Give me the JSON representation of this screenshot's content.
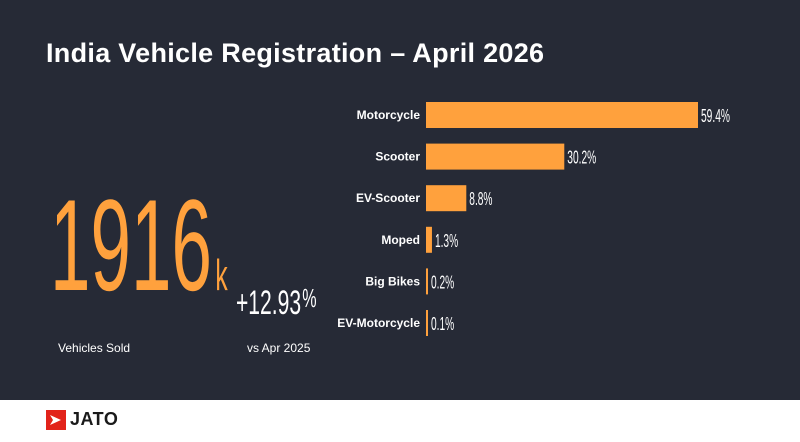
{
  "header": {
    "title": "India Vehicle Registration – April 2026"
  },
  "kpi": {
    "value": "1916",
    "unit": "k",
    "label": "Vehicles Sold",
    "change_value": "+12.93",
    "change_unit": "%",
    "change_label": "vs Apr 2025"
  },
  "brand": {
    "name": "JATO",
    "color": "#e2231a"
  },
  "colors": {
    "background": "#262a36",
    "accent": "#ffa13d",
    "text": "#ffffff"
  },
  "chart_data": {
    "type": "bar",
    "orientation": "horizontal",
    "categories": [
      "Motorcycle",
      "Scooter",
      "EV-Scooter",
      "Moped",
      "Big Bikes",
      "EV-Motorcycle"
    ],
    "values": [
      59.4,
      30.2,
      8.8,
      1.3,
      0.2,
      0.1
    ],
    "value_labels": [
      "59.4%",
      "30.2%",
      "8.8%",
      "1.3%",
      "0.2%",
      "0.1%"
    ],
    "xlim": [
      0,
      59.4
    ],
    "grid": false,
    "bar_color": "#ffa13d"
  }
}
